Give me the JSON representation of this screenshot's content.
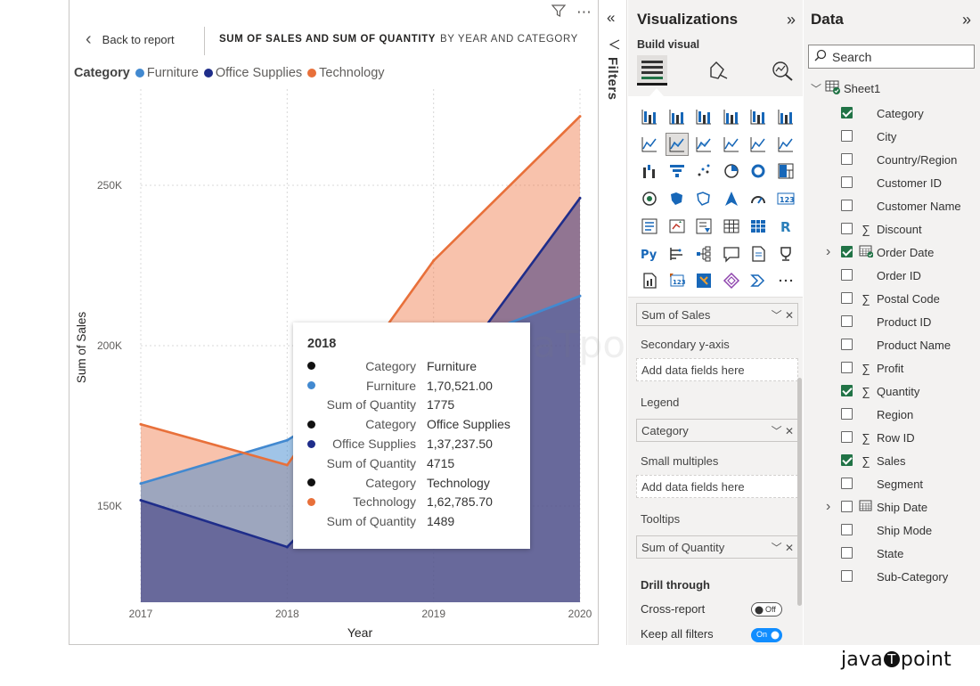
{
  "report": {
    "header": {
      "back_label": "Back to report",
      "title": "SUM OF SALES AND SUM OF QUANTITY",
      "subtitle": "BY YEAR AND CATEGORY"
    },
    "legend": {
      "title": "Category",
      "items": [
        {
          "name": "Furniture",
          "color": "#4289d0"
        },
        {
          "name": "Office Supplies",
          "color": "#1f2d8a"
        },
        {
          "name": "Technology",
          "color": "#e8703a"
        }
      ]
    },
    "tooltip": {
      "title": "2018",
      "rows": [
        {
          "dot": "#111111",
          "label": "Category",
          "value": "Furniture"
        },
        {
          "dot": "#4289d0",
          "label": "Furniture",
          "value": "1,70,521.00"
        },
        {
          "dot": "",
          "label": "Sum of Quantity",
          "value": "1775"
        },
        {
          "dot": "#111111",
          "label": "Category",
          "value": "Office Supplies"
        },
        {
          "dot": "#1f2d8a",
          "label": "Office Supplies",
          "value": "1,37,237.50"
        },
        {
          "dot": "",
          "label": "Sum of Quantity",
          "value": "4715"
        },
        {
          "dot": "#111111",
          "label": "Category",
          "value": "Technology"
        },
        {
          "dot": "#e8703a",
          "label": "Technology",
          "value": "1,62,785.70"
        },
        {
          "dot": "",
          "label": "Sum of Quantity",
          "value": "1489"
        }
      ]
    }
  },
  "chart_data": {
    "type": "area",
    "x": [
      "2017",
      "2018",
      "2019",
      "2020"
    ],
    "series": [
      {
        "name": "Furniture",
        "color": "#4289d0",
        "values": [
          157000,
          170521,
          198000,
          215500
        ]
      },
      {
        "name": "Office Supplies",
        "color": "#1f2d8a",
        "values": [
          151800,
          137237.5,
          184000,
          246000
        ]
      },
      {
        "name": "Technology",
        "color": "#e8703a",
        "values": [
          175500,
          162785.7,
          226500,
          271500
        ]
      }
    ],
    "xlabel": "Year",
    "ylabel": "Sum of Sales",
    "yticks": [
      150000,
      200000,
      250000
    ],
    "ytick_labels": [
      "150K",
      "200K",
      "250K"
    ],
    "ylim": [
      120000,
      280000
    ],
    "grid": true,
    "legend_position": "top-left",
    "tooltip_at": "2018"
  },
  "filters": {
    "label": "Filters"
  },
  "visualizations": {
    "title": "Visualizations",
    "build_label": "Build visual",
    "wells": [
      {
        "label": "",
        "value": "Sum of Sales",
        "filled": true
      },
      {
        "label": "Secondary y-axis",
        "value": "Add data fields here",
        "filled": false
      },
      {
        "label": "Legend",
        "value": "Category",
        "filled": true
      },
      {
        "label": "Small multiples",
        "value": "Add data fields here",
        "filled": false
      },
      {
        "label": "Tooltips",
        "value": "Sum of Quantity",
        "filled": true
      }
    ],
    "drill": {
      "title": "Drill through",
      "cross_report": "Cross-report",
      "cross_report_state": "Off",
      "keep_filters": "Keep all filters",
      "keep_filters_state": "On"
    }
  },
  "data_pane": {
    "title": "Data",
    "search_placeholder": "Search",
    "table_name": "Sheet1",
    "fields": [
      {
        "name": "Category",
        "checked": true,
        "type": "",
        "expandable": false
      },
      {
        "name": "City",
        "checked": false,
        "type": "",
        "expandable": false
      },
      {
        "name": "Country/Region",
        "checked": false,
        "type": "",
        "expandable": false
      },
      {
        "name": "Customer ID",
        "checked": false,
        "type": "",
        "expandable": false
      },
      {
        "name": "Customer Name",
        "checked": false,
        "type": "",
        "expandable": false
      },
      {
        "name": "Discount",
        "checked": false,
        "type": "sum",
        "expandable": false
      },
      {
        "name": "Order Date",
        "checked": true,
        "type": "date",
        "expandable": true
      },
      {
        "name": "Order ID",
        "checked": false,
        "type": "",
        "expandable": false
      },
      {
        "name": "Postal Code",
        "checked": false,
        "type": "sum",
        "expandable": false
      },
      {
        "name": "Product ID",
        "checked": false,
        "type": "",
        "expandable": false
      },
      {
        "name": "Product Name",
        "checked": false,
        "type": "",
        "expandable": false
      },
      {
        "name": "Profit",
        "checked": false,
        "type": "sum",
        "expandable": false
      },
      {
        "name": "Quantity",
        "checked": true,
        "type": "sum",
        "expandable": false
      },
      {
        "name": "Region",
        "checked": false,
        "type": "",
        "expandable": false
      },
      {
        "name": "Row ID",
        "checked": false,
        "type": "sum",
        "expandable": false
      },
      {
        "name": "Sales",
        "checked": true,
        "type": "sum",
        "expandable": false
      },
      {
        "name": "Segment",
        "checked": false,
        "type": "",
        "expandable": false
      },
      {
        "name": "Ship Date",
        "checked": false,
        "type": "date",
        "expandable": true
      },
      {
        "name": "Ship Mode",
        "checked": false,
        "type": "",
        "expandable": false
      },
      {
        "name": "State",
        "checked": false,
        "type": "",
        "expandable": false
      },
      {
        "name": "Sub-Category",
        "checked": false,
        "type": "",
        "expandable": false
      }
    ]
  },
  "watermark": {
    "left": "java",
    "mid": "T",
    "right": "point",
    "faint": "javaTpoint"
  }
}
